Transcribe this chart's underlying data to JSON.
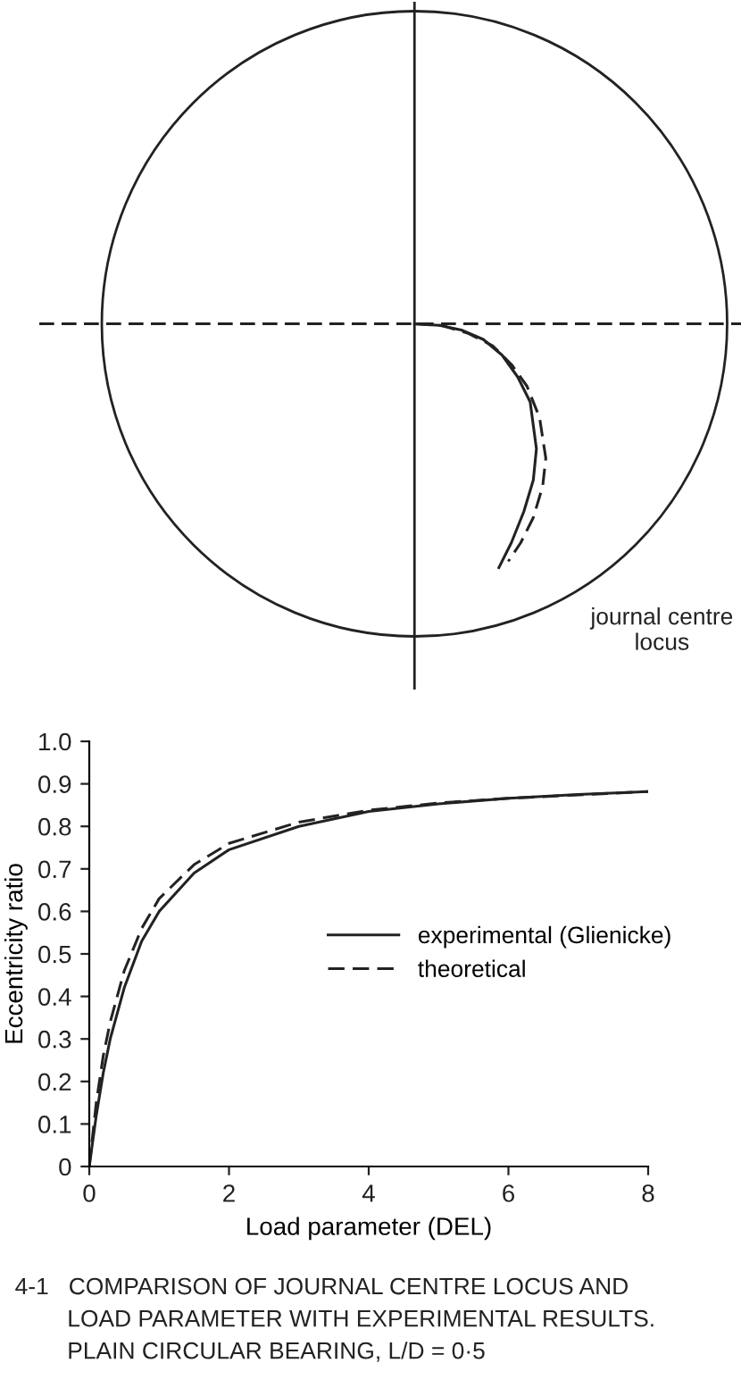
{
  "chart_data": [
    {
      "type": "other",
      "annotations": [
        "journal centre\nlocus"
      ]
    },
    {
      "type": "line",
      "xlabel": "Load parameter (DEL)",
      "ylabel": "Eccentricity ratio",
      "xlim": [
        0,
        8
      ],
      "xticks": [
        0,
        2,
        4,
        6,
        8
      ],
      "ylim": [
        0,
        1
      ],
      "yticks": [
        0,
        0.1,
        0.2,
        0.3,
        0.4,
        0.5,
        0.6,
        0.7,
        0.8,
        0.9,
        {
          "value": 1,
          "label": "1.0"
        }
      ],
      "legend": "center right",
      "annotations": [
        "4-1   COMPARISON OF JOURNAL CENTRE LOCUS AND\n        LOAD PARAMETER WITH EXPERIMENTAL RESULTS.\n        PLAIN CIRCULAR BEARING, L/D = 0·5"
      ],
      "series": [
        {
          "name": "experimental (Glienicke)",
          "color": "#222222",
          "line_style": "solid",
          "x": [
            0,
            0.1,
            0.2,
            0.3,
            0.5,
            0.75,
            1,
            1.5,
            2,
            3,
            4,
            5,
            6,
            7,
            8
          ],
          "values": [
            0,
            0.12,
            0.22,
            0.3,
            0.42,
            0.53,
            0.6,
            0.69,
            0.745,
            0.8,
            0.835,
            0.853,
            0.866,
            0.875,
            0.882
          ]
        },
        {
          "name": "theoretical",
          "color": "#222222",
          "line_style": "dashed",
          "x": [
            0,
            0.1,
            0.2,
            0.3,
            0.5,
            0.75,
            1,
            1.5,
            2,
            3,
            4,
            5,
            6,
            7,
            8
          ],
          "values": [
            0,
            0.15,
            0.26,
            0.34,
            0.46,
            0.56,
            0.63,
            0.71,
            0.76,
            0.81,
            0.838,
            0.855,
            0.866,
            0.874,
            0.882
          ]
        }
      ]
    }
  ]
}
